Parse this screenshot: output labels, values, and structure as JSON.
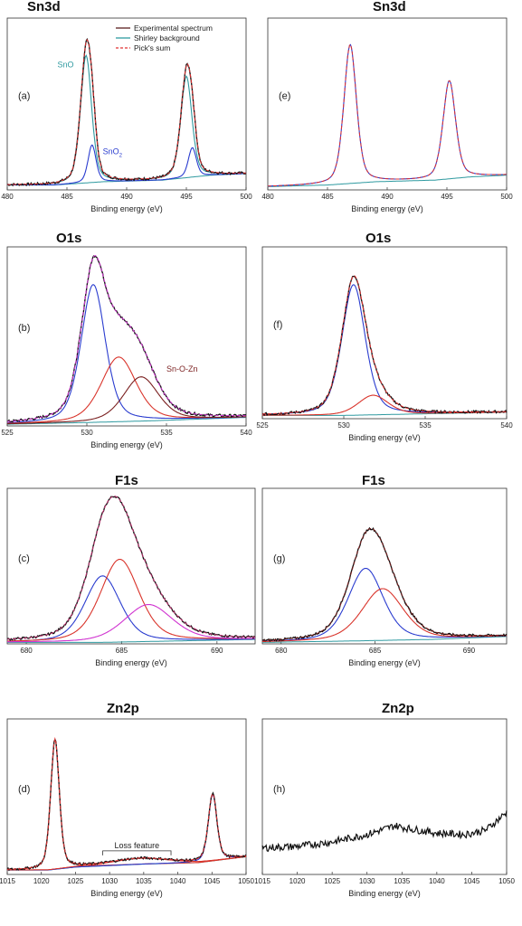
{
  "figure": {
    "legend": [
      {
        "label": "Experimental spectrum",
        "color": "#5a2020",
        "dash": false
      },
      {
        "label": "Shirley background",
        "color": "#2f9aa0",
        "dash": false
      },
      {
        "label": "Pick's sum",
        "color": "#e03030",
        "dash": true
      }
    ]
  },
  "colors": {
    "experimental": "#111111",
    "sum": "#e03030",
    "background": "#2f9aa0",
    "blue": "#2a3ccf",
    "red": "#d9342b",
    "magenta": "#d032d0",
    "darkred": "#7a1f1f",
    "pink": "#c03070",
    "teal": "#2f9aa0"
  },
  "chart_data": [
    {
      "id": "a",
      "type": "line",
      "title": "Sn3d",
      "panel_label": "(a)",
      "xlabel": "Binding energy (eV)",
      "xlim": [
        480,
        500
      ],
      "xticks": [
        "480",
        "485",
        "490",
        "495",
        "500"
      ],
      "baseline": [
        [
          480,
          0.03
        ],
        [
          484,
          0.03
        ],
        [
          488,
          0.05
        ],
        [
          493,
          0.06
        ],
        [
          497,
          0.09
        ],
        [
          500,
          0.1
        ]
      ],
      "components": [
        {
          "name": "SnO",
          "color": "teal",
          "peaks": [
            [
              486.6,
              0.78,
              0.55
            ],
            [
              495.0,
              0.62,
              0.55
            ]
          ]
        },
        {
          "name": "SnO2",
          "color": "blue",
          "peaks": [
            [
              487.1,
              0.23,
              0.4
            ],
            [
              495.5,
              0.18,
              0.4
            ]
          ]
        }
      ],
      "has_sum": true,
      "has_experimental": true,
      "show_legend": true,
      "annotations": [
        {
          "text": "SnO",
          "x": 484.2,
          "y": 0.75,
          "color": "teal"
        },
        {
          "text": "SnO",
          "sub": "2",
          "x": 488.0,
          "y": 0.22,
          "color": "blue"
        }
      ]
    },
    {
      "id": "e",
      "type": "line",
      "title": "Sn3d",
      "panel_label": "(e)",
      "xlabel": "Binding energy (eV)",
      "xlim": [
        480,
        500
      ],
      "xticks": [
        "480",
        "485",
        "490",
        "495",
        "500"
      ],
      "baseline": [
        [
          480,
          0.02
        ],
        [
          485,
          0.03
        ],
        [
          489,
          0.05
        ],
        [
          494,
          0.06
        ],
        [
          497,
          0.08
        ],
        [
          500,
          0.09
        ]
      ],
      "components": [
        {
          "name": "",
          "color": "blue",
          "peaks": [
            [
              486.9,
              0.85,
              0.62
            ],
            [
              495.2,
              0.6,
              0.62
            ]
          ]
        }
      ],
      "has_sum": true,
      "has_experimental": false,
      "show_legend": false,
      "annotations": []
    },
    {
      "id": "b",
      "type": "line",
      "title": "O1s",
      "panel_label": "(b)",
      "xlabel": "Binding energy (eV)",
      "xlim": [
        525,
        540
      ],
      "xticks": [
        "525",
        "530",
        "535",
        "540"
      ],
      "baseline": [
        [
          525,
          0.01
        ],
        [
          530,
          0.02
        ],
        [
          534,
          0.03
        ],
        [
          540,
          0.05
        ]
      ],
      "components": [
        {
          "name": "",
          "color": "blue",
          "peaks": [
            [
              530.4,
              0.81,
              0.9
            ]
          ]
        },
        {
          "name": "",
          "color": "red",
          "peaks": [
            [
              532.0,
              0.38,
              1.3
            ]
          ]
        },
        {
          "name": "Sn-O-Zn",
          "color": "darkred",
          "peaks": [
            [
              533.4,
              0.26,
              1.3
            ]
          ]
        }
      ],
      "has_sum": true,
      "sum_color": "magenta",
      "has_experimental": true,
      "show_legend": false,
      "annotations": [
        {
          "text": "Sn-O-Zn",
          "x": 535.0,
          "y": 0.32,
          "color": "darkred"
        }
      ]
    },
    {
      "id": "f",
      "type": "line",
      "title": "O1s",
      "panel_label": "(f)",
      "xlabel": "Binding energy (eV)",
      "xlim": [
        525,
        540
      ],
      "xticks": [
        "525",
        "530",
        "535",
        "540"
      ],
      "baseline": [
        [
          525,
          0.02
        ],
        [
          530,
          0.02
        ],
        [
          535,
          0.03
        ],
        [
          540,
          0.04
        ]
      ],
      "components": [
        {
          "name": "",
          "color": "blue",
          "peaks": [
            [
              530.6,
              0.8,
              0.85
            ]
          ]
        },
        {
          "name": "",
          "color": "red",
          "peaks": [
            [
              531.8,
              0.12,
              1.1
            ]
          ]
        }
      ],
      "has_sum": true,
      "has_experimental": true,
      "show_legend": false,
      "annotations": []
    },
    {
      "id": "c",
      "type": "line",
      "title": "F1s",
      "panel_label": "(c)",
      "xlabel": "Binding energy (eV)",
      "xlim": [
        679,
        692
      ],
      "xticks": [
        "680",
        "685",
        "690"
      ],
      "baseline": [
        [
          679,
          0.01
        ],
        [
          684,
          0.01
        ],
        [
          688,
          0.02
        ],
        [
          692,
          0.03
        ]
      ],
      "components": [
        {
          "name": "",
          "color": "blue",
          "peaks": [
            [
              684.0,
              0.45,
              1.1
            ]
          ]
        },
        {
          "name": "",
          "color": "red",
          "peaks": [
            [
              684.9,
              0.56,
              1.2
            ]
          ]
        },
        {
          "name": "",
          "color": "magenta",
          "peaks": [
            [
              686.4,
              0.25,
              1.5
            ]
          ]
        }
      ],
      "has_sum": true,
      "sum_color": "pink",
      "has_experimental": true,
      "show_legend": false,
      "annotations": []
    },
    {
      "id": "g",
      "type": "line",
      "title": "F1s",
      "panel_label": "(g)",
      "xlabel": "Binding energy (eV)",
      "xlim": [
        679,
        692
      ],
      "xticks": [
        "680",
        "685",
        "690"
      ],
      "baseline": [
        [
          679,
          0.01
        ],
        [
          684,
          0.02
        ],
        [
          688,
          0.03
        ],
        [
          692,
          0.05
        ]
      ],
      "components": [
        {
          "name": "",
          "color": "blue",
          "peaks": [
            [
              684.5,
              0.49,
              1.1
            ]
          ]
        },
        {
          "name": "",
          "color": "red",
          "peaks": [
            [
              685.4,
              0.35,
              1.3
            ]
          ]
        }
      ],
      "has_sum": true,
      "sum_color": "darkred",
      "has_experimental": true,
      "show_legend": false,
      "annotations": []
    },
    {
      "id": "d",
      "type": "line",
      "title": "Zn2p",
      "panel_label": "(d)",
      "xlabel": "Binding energy (eV)",
      "xlim": [
        1015,
        1050
      ],
      "xticks": [
        "1015",
        "1020",
        "1025",
        "1030",
        "1035",
        "1040",
        "1045",
        "1050"
      ],
      "baseline": [
        [
          1015,
          0.03
        ],
        [
          1021,
          0.03
        ],
        [
          1025,
          0.05
        ],
        [
          1035,
          0.07
        ],
        [
          1043,
          0.08
        ],
        [
          1050,
          0.12
        ]
      ],
      "components": [
        {
          "name": "",
          "color": "red",
          "peaks": [
            [
              1022.0,
              0.88,
              0.75
            ]
          ]
        },
        {
          "name": "",
          "color": "blue",
          "peaks": [
            [
              1045.1,
              0.45,
              0.75
            ]
          ]
        },
        {
          "name": "",
          "color": "red",
          "peaks": [
            [
              1034.5,
              0.04,
              5.0
            ]
          ]
        }
      ],
      "has_sum": true,
      "has_experimental": true,
      "show_legend": false,
      "annotations": [],
      "bracket": {
        "text": "Loss feature",
        "x1": 1029,
        "x2": 1039,
        "y": 0.16
      }
    },
    {
      "id": "h",
      "type": "line",
      "title": "Zn2p",
      "panel_label": "(h)",
      "xlabel": "Binding energy (eV)",
      "xlim": [
        1015,
        1050
      ],
      "xticks": [
        "1015",
        "1020",
        "1025",
        "1030",
        "1035",
        "1040",
        "1045",
        "1050"
      ],
      "baseline": [
        [
          1015,
          0.18
        ],
        [
          1020,
          0.19
        ],
        [
          1025,
          0.22
        ],
        [
          1030,
          0.27
        ],
        [
          1034,
          0.33
        ],
        [
          1036,
          0.31
        ],
        [
          1040,
          0.28
        ],
        [
          1044,
          0.27
        ],
        [
          1047,
          0.3
        ],
        [
          1050,
          0.42
        ]
      ],
      "components": [],
      "has_sum": false,
      "has_experimental": true,
      "experimental_only": true,
      "show_legend": false,
      "annotations": []
    }
  ]
}
